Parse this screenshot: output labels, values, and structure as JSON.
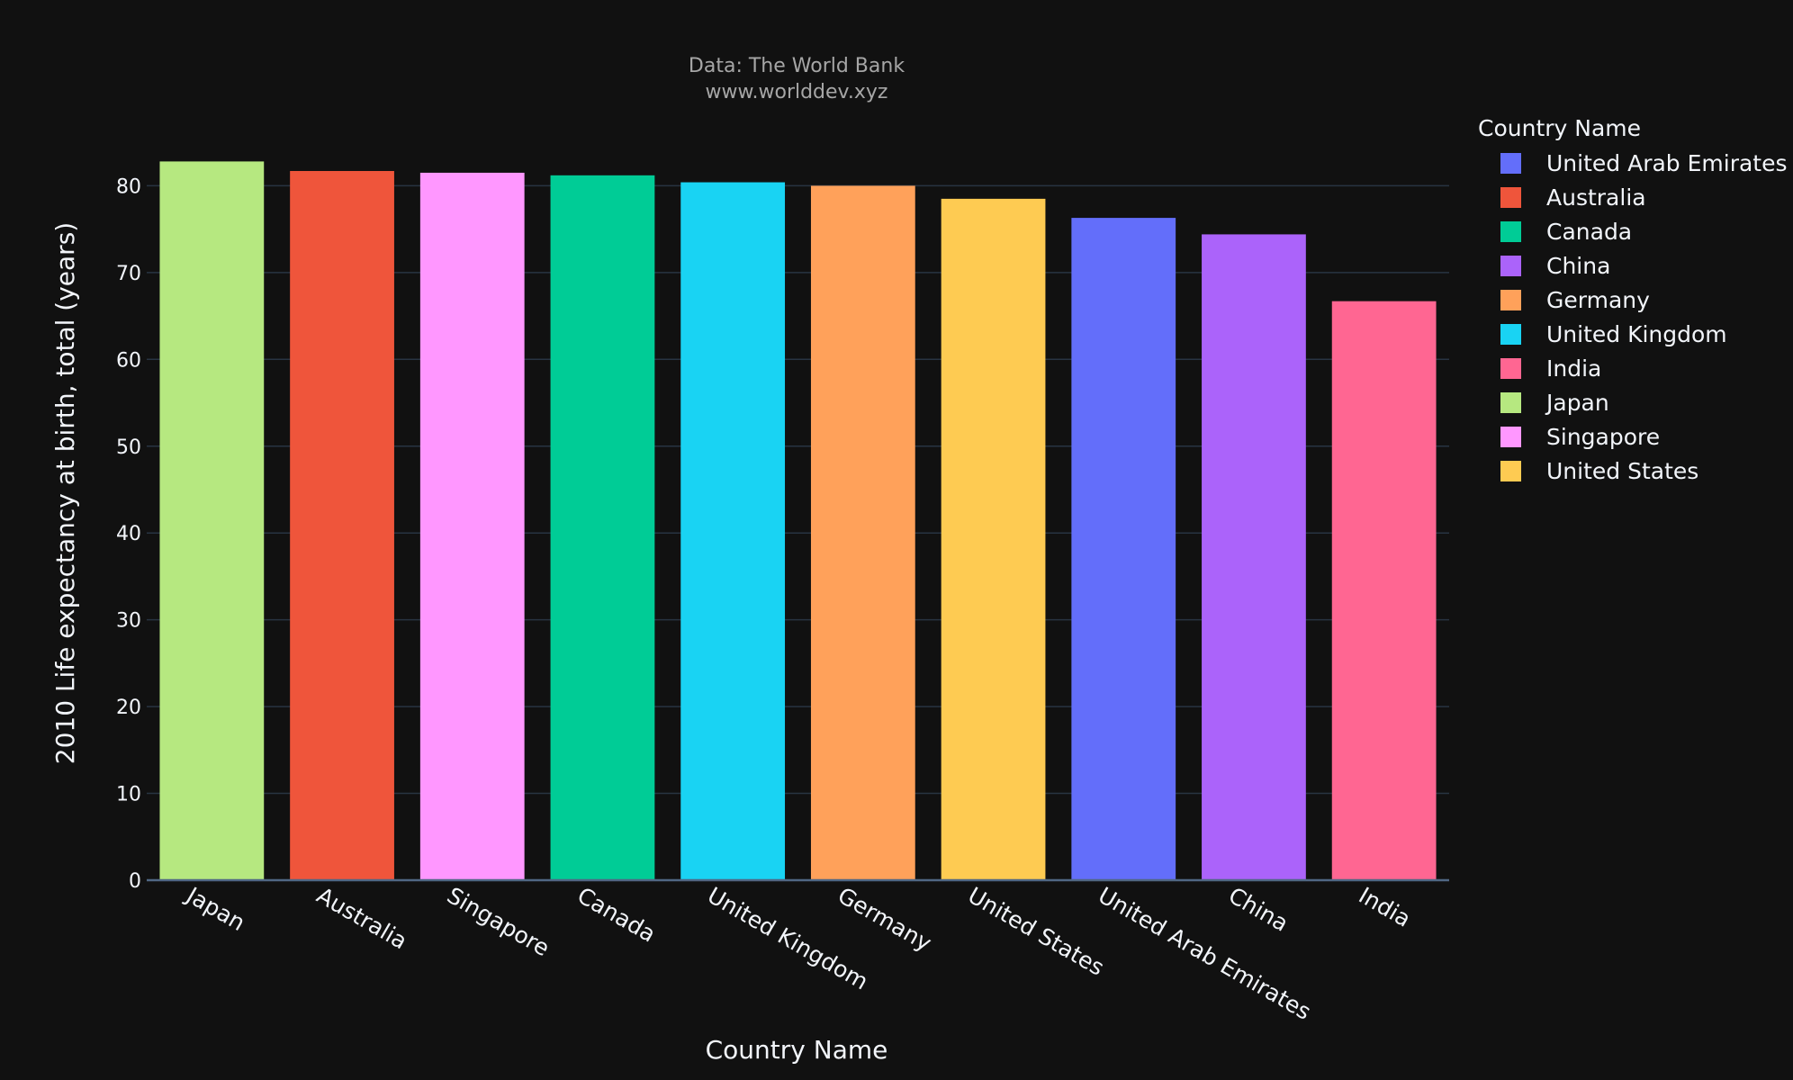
{
  "chart_data": {
    "type": "bar",
    "subtitle_lines": [
      "Data: The World Bank",
      "www.worlddev.xyz"
    ],
    "xlabel": "Country Name",
    "ylabel": "2010 Life expectancy at birth, total (years)",
    "ylim": [
      0,
      84.5
    ],
    "yticks": [
      0,
      10,
      20,
      30,
      40,
      50,
      60,
      70,
      80
    ],
    "grid": true,
    "legend_position": "right",
    "legend_title": "Country Name",
    "categories": [
      "Japan",
      "Australia",
      "Singapore",
      "Canada",
      "United Kingdom",
      "Germany",
      "United States",
      "United Arab Emirates",
      "China",
      "India"
    ],
    "values": [
      82.8,
      81.7,
      81.5,
      81.2,
      80.4,
      80.0,
      78.5,
      76.3,
      74.4,
      66.7
    ],
    "colors": [
      "#B6E880",
      "#EF553B",
      "#FF97FF",
      "#00CC96",
      "#19D3F3",
      "#FFA15A",
      "#FECB52",
      "#636EFA",
      "#AB63FA",
      "#FF6692"
    ],
    "legend": [
      {
        "label": "United Arab Emirates",
        "color": "#636EFA"
      },
      {
        "label": "Australia",
        "color": "#EF553B"
      },
      {
        "label": "Canada",
        "color": "#00CC96"
      },
      {
        "label": "China",
        "color": "#AB63FA"
      },
      {
        "label": "Germany",
        "color": "#FFA15A"
      },
      {
        "label": "United Kingdom",
        "color": "#19D3F3"
      },
      {
        "label": "India",
        "color": "#FF6692"
      },
      {
        "label": "Japan",
        "color": "#B6E880"
      },
      {
        "label": "Singapore",
        "color": "#FF97FF"
      },
      {
        "label": "United States",
        "color": "#FECB52"
      }
    ]
  }
}
